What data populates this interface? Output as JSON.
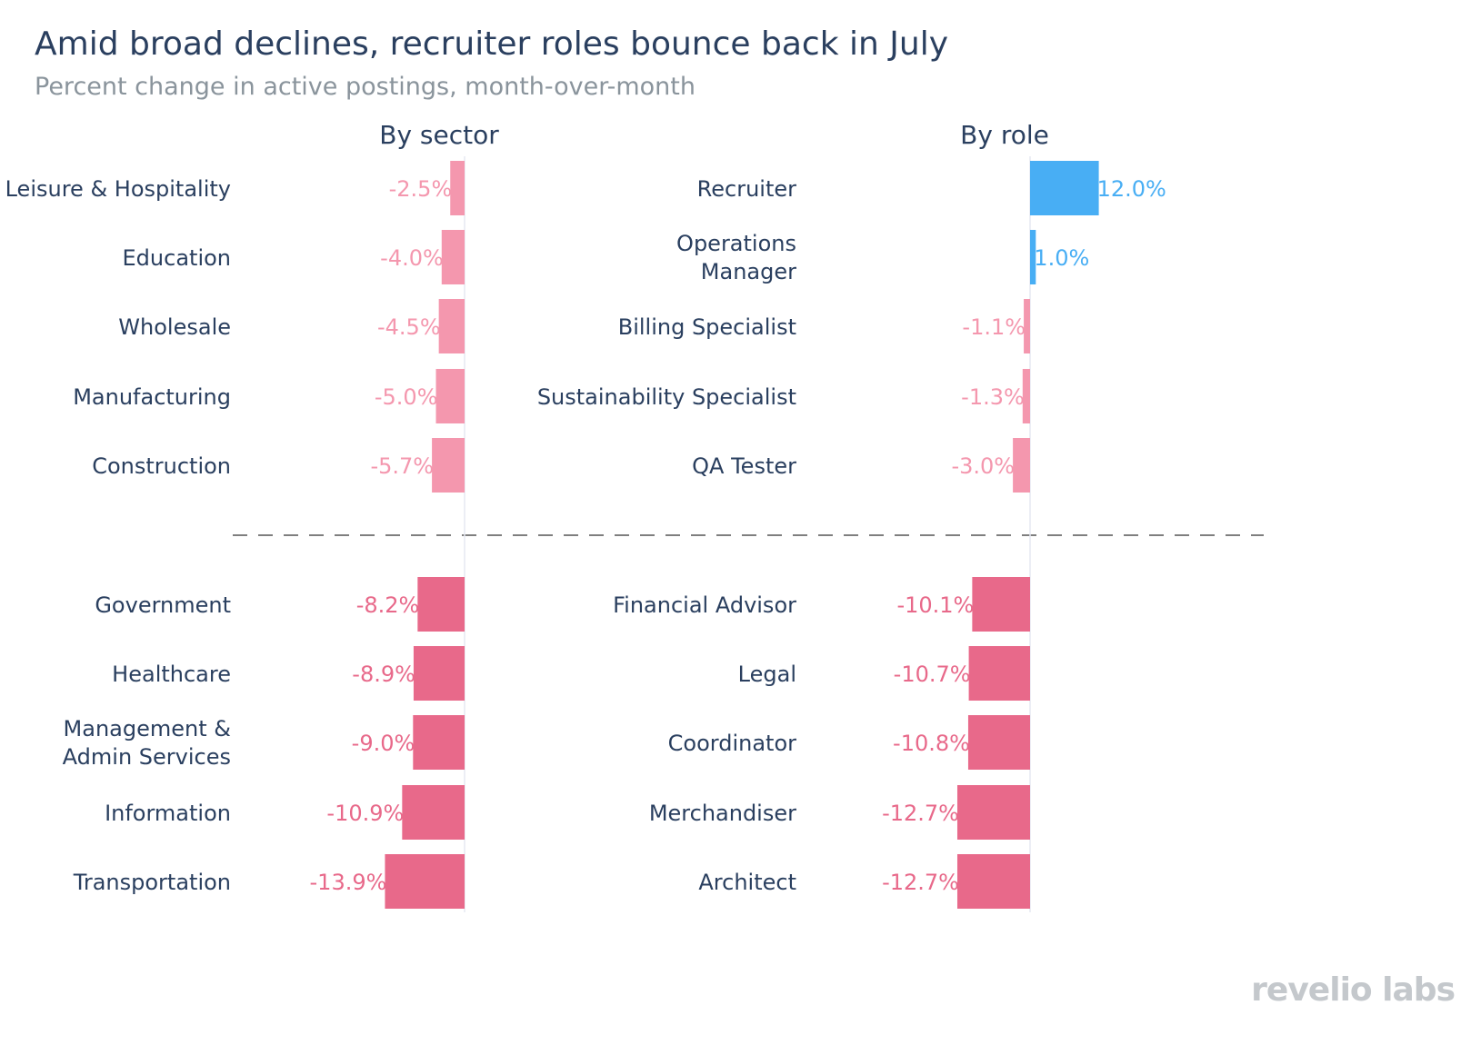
{
  "header": {
    "title": "Amid broad declines, recruiter roles bounce back in July",
    "subtitle": "Percent change in active postings, month-over-month"
  },
  "brand": {
    "logo_text": "revelio labs"
  },
  "colors": {
    "positive": "#48aef4",
    "negative_light": "#f497ae",
    "negative_dark": "#e8698a",
    "text": "#2a3f5f",
    "axis": "#e6e8f2",
    "divider": "#555555"
  },
  "chart_data": [
    {
      "type": "bar",
      "orientation": "horizontal",
      "title": "By sector",
      "categories": [
        "Leisure & Hospitality",
        "Education",
        "Wholesale",
        "Manufacturing",
        "Construction",
        "Government",
        "Healthcare",
        "Management & Admin Services",
        "Information",
        "Transportation"
      ],
      "values": [
        -2.5,
        -4.0,
        -4.5,
        -5.0,
        -5.7,
        -8.2,
        -8.9,
        -9.0,
        -10.9,
        -13.9
      ],
      "data_labels": [
        "-2.5%",
        "-4.0%",
        "-4.5%",
        "-5.0%",
        "-5.7%",
        "-8.2%",
        "-8.9%",
        "-9.0%",
        "-10.9%",
        "-13.9%"
      ],
      "groups": [
        "top",
        "top",
        "top",
        "top",
        "top",
        "bottom",
        "bottom",
        "bottom",
        "bottom",
        "bottom"
      ]
    },
    {
      "type": "bar",
      "orientation": "horizontal",
      "title": "By role",
      "categories": [
        "Recruiter",
        "Operations Manager",
        "Billing Specialist",
        "Sustainability Specialist",
        "QA Tester",
        "Financial Advisor",
        "Legal",
        "Coordinator",
        "Merchandiser",
        "Architect"
      ],
      "values": [
        12.0,
        1.0,
        -1.1,
        -1.3,
        -3.0,
        -10.1,
        -10.7,
        -10.8,
        -12.7,
        -12.7
      ],
      "data_labels": [
        "12.0%",
        "1.0%",
        "-1.1%",
        "-1.3%",
        "-3.0%",
        "-10.1%",
        "-10.7%",
        "-10.8%",
        "-12.7%",
        "-12.7%"
      ],
      "groups": [
        "top",
        "top",
        "top",
        "top",
        "top",
        "bottom",
        "bottom",
        "bottom",
        "bottom",
        "bottom"
      ]
    }
  ]
}
